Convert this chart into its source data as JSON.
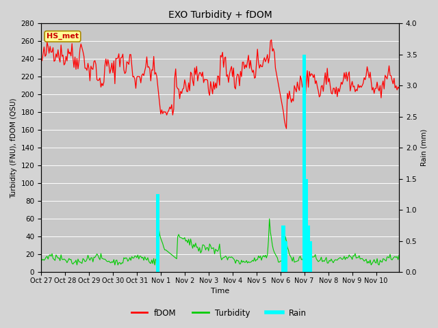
{
  "title": "EXO Turbidity + fDOM",
  "xlabel": "Time",
  "ylabel_left": "Turbidity (FNU), fDOM (QSU)",
  "ylabel_right": "Rain (mm)",
  "ylim_left": [
    0,
    280
  ],
  "ylim_right": [
    0,
    4.0
  ],
  "yticks_left": [
    0,
    20,
    40,
    60,
    80,
    100,
    120,
    140,
    160,
    180,
    200,
    220,
    240,
    260,
    280
  ],
  "yticks_right": [
    0.0,
    0.5,
    1.0,
    1.5,
    2.0,
    2.5,
    3.0,
    3.5,
    4.0
  ],
  "fdom_color": "#ff0000",
  "turbidity_color": "#00cc00",
  "rain_color": "#00ffff",
  "background_color": "#d4d4d4",
  "axes_bg_color": "#c8c8c8",
  "grid_color": "#ffffff",
  "annotation_text": "HS_met",
  "annotation_bg": "#ffff99",
  "annotation_border": "#aa8800",
  "legend_fdom": "fDOM",
  "legend_turbidity": "Turbidity",
  "legend_rain": "Rain",
  "n_points": 360,
  "n_days": 15
}
